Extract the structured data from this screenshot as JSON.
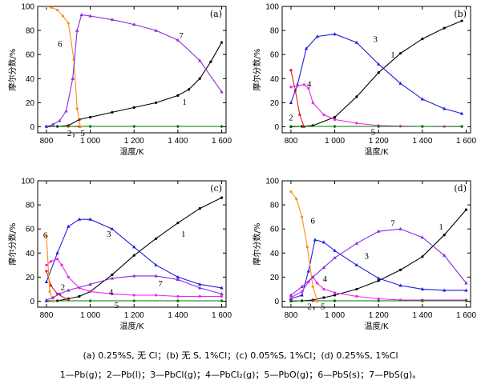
{
  "captions": {
    "conditions": "(a) 0.25%S, 无 Cl；(b) 无 S, 1%Cl；(c) 0.05%S, 1%Cl；(d) 0.25%S, 1%Cl",
    "legend": "1—Pb(g)；2—Pb(l)；3—PbCl(g)；4—PbCl₂(g)；5—PbO(g)；6—PbS(s)；7—PbS(g)。"
  },
  "colors": {
    "s1": "#000000",
    "s2": "#e41a1c",
    "s3": "#1f1fdd",
    "s4": "#ee22ee",
    "s5": "#007700",
    "s6": "#ff8c1a",
    "s7": "#8a2be2"
  },
  "chart_data": [
    {
      "panel": "(a)",
      "type": "line",
      "xlabel": "温度/K",
      "ylabel": "摩尔分数/%",
      "xlim": [
        760,
        1620
      ],
      "ylim": [
        -5,
        100
      ],
      "xticks": [
        800,
        1000,
        1200,
        1400,
        1600
      ],
      "xtick_labels": [
        "800",
        "1 000",
        "1 200",
        "1 400",
        "1 600"
      ],
      "yticks": [
        0,
        20,
        40,
        60,
        80,
        100
      ],
      "annotations": [
        {
          "text": "1",
          "x": 1430,
          "y": 21
        },
        {
          "text": "2，5",
          "x": 935,
          "y": -5
        },
        {
          "text": "6",
          "x": 862,
          "y": 69
        },
        {
          "text": "7",
          "x": 1415,
          "y": 76
        }
      ],
      "series": [
        {
          "id": "1",
          "x": [
            800,
            850,
            900,
            950,
            1000,
            1100,
            1200,
            1300,
            1400,
            1450,
            1500,
            1550,
            1600
          ],
          "y": [
            0,
            0.3,
            1,
            6,
            8,
            12,
            16,
            20,
            26,
            31,
            40,
            54,
            70
          ]
        },
        {
          "id": "2",
          "x": [
            800,
            900,
            950
          ],
          "y": [
            0.3,
            0.3,
            0.2
          ]
        },
        {
          "id": "5",
          "x": [
            800,
            1000,
            1200,
            1400,
            1600
          ],
          "y": [
            0.3,
            0.3,
            0.3,
            0.3,
            0.3
          ]
        },
        {
          "id": "6",
          "x": [
            800,
            825,
            850,
            875,
            900,
            925,
            940,
            955
          ],
          "y": [
            100,
            99,
            97,
            92,
            86,
            56,
            15,
            0
          ]
        },
        {
          "id": "7",
          "x": [
            800,
            830,
            860,
            890,
            920,
            940,
            960,
            1000,
            1100,
            1200,
            1300,
            1400,
            1500,
            1600
          ],
          "y": [
            0,
            2,
            5,
            13,
            40,
            80,
            93,
            92,
            89,
            85,
            80,
            72,
            55,
            29
          ]
        }
      ]
    },
    {
      "panel": "(b)",
      "type": "line",
      "xlabel": "温度/K",
      "ylabel": "摩尔分数/%",
      "xlim": [
        760,
        1620
      ],
      "ylim": [
        -5,
        100
      ],
      "xticks": [
        800,
        1000,
        1200,
        1400,
        1600
      ],
      "xtick_labels": [
        "800",
        "1 000",
        "1 200",
        "1 400",
        "1 600"
      ],
      "yticks": [
        0,
        20,
        40,
        60,
        80,
        100
      ],
      "annotations": [
        {
          "text": "1",
          "x": 1265,
          "y": 60
        },
        {
          "text": "2",
          "x": 800,
          "y": 8
        },
        {
          "text": "3",
          "x": 1185,
          "y": 73
        },
        {
          "text": "4",
          "x": 883,
          "y": 36
        },
        {
          "text": "5",
          "x": 1175,
          "y": -4
        }
      ],
      "series": [
        {
          "id": "1",
          "x": [
            800,
            850,
            900,
            1000,
            1100,
            1200,
            1300,
            1400,
            1500,
            1580
          ],
          "y": [
            0,
            0.3,
            1,
            8,
            25,
            45,
            61,
            73,
            82,
            88
          ]
        },
        {
          "id": "2",
          "x": [
            800,
            820,
            840,
            860
          ],
          "y": [
            47,
            30,
            10,
            0
          ]
        },
        {
          "id": "3",
          "x": [
            800,
            830,
            870,
            920,
            1000,
            1100,
            1200,
            1300,
            1400,
            1500,
            1580
          ],
          "y": [
            20,
            35,
            65,
            75,
            77,
            70,
            52,
            36,
            23,
            15,
            11
          ]
        },
        {
          "id": "4",
          "x": [
            800,
            830,
            860,
            880,
            900,
            950,
            1000,
            1100,
            1200,
            1300,
            1400,
            1500,
            1580
          ],
          "y": [
            33,
            34,
            35,
            32,
            20,
            10,
            6,
            3,
            1,
            0.5,
            0.3,
            0.2,
            0.2
          ]
        },
        {
          "id": "5",
          "x": [
            800,
            1000,
            1200,
            1400,
            1580
          ],
          "y": [
            0.3,
            0.3,
            0.3,
            0.3,
            0.3
          ]
        }
      ]
    },
    {
      "panel": "(c)",
      "type": "line",
      "xlabel": "温度/K",
      "ylabel": "摩尔分数/%",
      "xlim": [
        760,
        1620
      ],
      "ylim": [
        -5,
        100
      ],
      "xticks": [
        800,
        1000,
        1200,
        1400,
        1600
      ],
      "xtick_labels": [
        "800",
        "1 000",
        "1 200",
        "1 400",
        "1 600"
      ],
      "yticks": [
        0,
        20,
        40,
        60,
        80,
        100
      ],
      "annotations": [
        {
          "text": "1",
          "x": 1425,
          "y": 56
        },
        {
          "text": "2",
          "x": 875,
          "y": 12
        },
        {
          "text": "3",
          "x": 1085,
          "y": 56
        },
        {
          "text": "4",
          "x": 1095,
          "y": 8
        },
        {
          "text": "5",
          "x": 1120,
          "y": -3
        },
        {
          "text": "6",
          "x": 795,
          "y": 55
        },
        {
          "text": "7",
          "x": 1320,
          "y": 15
        }
      ],
      "series": [
        {
          "id": "1",
          "x": [
            800,
            850,
            900,
            950,
            1000,
            1100,
            1200,
            1300,
            1400,
            1500,
            1600
          ],
          "y": [
            0,
            0.3,
            2,
            4,
            8,
            22,
            38,
            52,
            65,
            77,
            86
          ]
        },
        {
          "id": "2",
          "x": [
            800,
            820,
            850,
            900
          ],
          "y": [
            25,
            13,
            6,
            1
          ]
        },
        {
          "id": "3",
          "x": [
            800,
            850,
            900,
            950,
            1000,
            1100,
            1200,
            1300,
            1400,
            1500,
            1600
          ],
          "y": [
            16,
            40,
            62,
            68,
            68,
            60,
            45,
            30,
            20,
            14,
            11
          ]
        },
        {
          "id": "4",
          "x": [
            800,
            820,
            850,
            870,
            900,
            950,
            1000,
            1100,
            1200,
            1300,
            1400,
            1500,
            1600
          ],
          "y": [
            30,
            33,
            35,
            30,
            20,
            11,
            8,
            6,
            5,
            5,
            4,
            4,
            4
          ]
        },
        {
          "id": "5",
          "x": [
            800,
            1000,
            1200,
            1400,
            1600
          ],
          "y": [
            0.3,
            0.3,
            0.3,
            0.3,
            0.3
          ]
        },
        {
          "id": "6",
          "x": [
            800,
            815,
            830
          ],
          "y": [
            54,
            8,
            0
          ]
        },
        {
          "id": "7",
          "x": [
            800,
            830,
            860,
            900,
            1000,
            1100,
            1200,
            1300,
            1400,
            1500,
            1600
          ],
          "y": [
            1,
            3,
            6,
            9,
            14,
            19,
            21,
            21,
            18,
            11,
            6
          ]
        }
      ]
    },
    {
      "panel": "(d)",
      "type": "line",
      "xlabel": "温度/K",
      "ylabel": "摩尔分数/%",
      "xlim": [
        760,
        1620
      ],
      "ylim": [
        -5,
        100
      ],
      "xticks": [
        800,
        1000,
        1200,
        1400,
        1600
      ],
      "xtick_labels": [
        "800",
        "1 000",
        "1 200",
        "1 400",
        "1 600"
      ],
      "yticks": [
        0,
        20,
        40,
        60,
        80,
        100
      ],
      "annotations": [
        {
          "text": "1",
          "x": 1485,
          "y": 62
        },
        {
          "text": "2，5",
          "x": 915,
          "y": -4
        },
        {
          "text": "3",
          "x": 1145,
          "y": 38
        },
        {
          "text": "4",
          "x": 955,
          "y": 19
        },
        {
          "text": "6",
          "x": 900,
          "y": 67
        },
        {
          "text": "7",
          "x": 1265,
          "y": 65
        }
      ],
      "series": [
        {
          "id": "1",
          "x": [
            800,
            850,
            900,
            950,
            1000,
            1100,
            1200,
            1300,
            1400,
            1500,
            1600
          ],
          "y": [
            0,
            0.3,
            1,
            3,
            5,
            10,
            17,
            26,
            37,
            55,
            76
          ]
        },
        {
          "id": "2",
          "x": [
            800,
            900,
            1000
          ],
          "y": [
            0.3,
            0.3,
            0.3
          ]
        },
        {
          "id": "3",
          "x": [
            800,
            850,
            880,
            910,
            950,
            1000,
            1100,
            1200,
            1300,
            1400,
            1500,
            1600
          ],
          "y": [
            2,
            5,
            25,
            51,
            49,
            42,
            30,
            19,
            13,
            10,
            9,
            9
          ]
        },
        {
          "id": "4",
          "x": [
            800,
            850,
            880,
            900,
            920,
            950,
            1000,
            1100,
            1200,
            1300,
            1400,
            1600
          ],
          "y": [
            3,
            8,
            16,
            20,
            15,
            10,
            7,
            4,
            2,
            1,
            1,
            1
          ]
        },
        {
          "id": "5",
          "x": [
            800,
            1000,
            1200,
            1400,
            1600
          ],
          "y": [
            0.3,
            0.3,
            0.3,
            0.3,
            0.3
          ]
        },
        {
          "id": "6",
          "x": [
            800,
            825,
            850,
            875,
            900,
            920
          ],
          "y": [
            91,
            85,
            70,
            45,
            12,
            0
          ]
        },
        {
          "id": "7",
          "x": [
            800,
            850,
            900,
            950,
            1000,
            1100,
            1200,
            1300,
            1400,
            1500,
            1600
          ],
          "y": [
            5,
            12,
            20,
            28,
            36,
            48,
            58,
            60,
            53,
            38,
            15
          ]
        }
      ]
    }
  ]
}
